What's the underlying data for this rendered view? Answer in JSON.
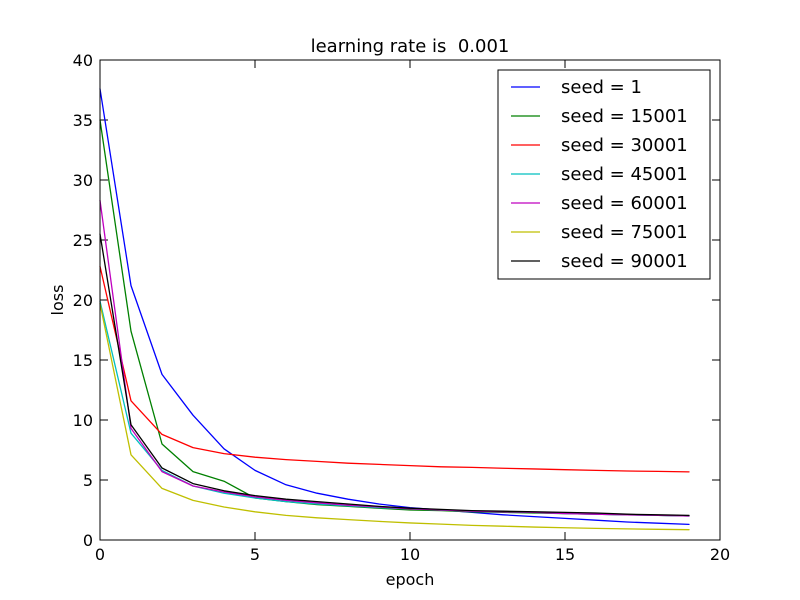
{
  "chart_data": {
    "type": "line",
    "title": "learning rate is  0.001",
    "xlabel": "epoch",
    "ylabel": "loss",
    "xlim": [
      0,
      20
    ],
    "ylim": [
      0,
      40
    ],
    "xticks": [
      0,
      5,
      10,
      15,
      20
    ],
    "yticks": [
      0,
      5,
      10,
      15,
      20,
      25,
      30,
      35,
      40
    ],
    "xtick_labels": [
      "0",
      "5",
      "10",
      "15",
      "20"
    ],
    "ytick_labels": [
      "0",
      "5",
      "10",
      "15",
      "20",
      "25",
      "30",
      "35",
      "40"
    ],
    "grid": false,
    "legend_position": "top-right",
    "x": [
      0,
      1,
      2,
      3,
      4,
      5,
      6,
      7,
      8,
      9,
      10,
      11,
      12,
      13,
      14,
      15,
      16,
      17,
      18,
      19
    ],
    "series": [
      {
        "name": "seed = 1",
        "legend_label": "seed = 1",
        "color": "#0000ff",
        "values": [
          37.6,
          21.2,
          13.8,
          10.4,
          7.6,
          5.8,
          4.6,
          3.9,
          3.4,
          3.0,
          2.7,
          2.5,
          2.3,
          2.1,
          1.95,
          1.8,
          1.65,
          1.5,
          1.4,
          1.3
        ]
      },
      {
        "name": "seed = 15001",
        "legend_label": "seed = 15001",
        "color": "#008000",
        "values": [
          35.0,
          17.4,
          8.0,
          5.7,
          4.9,
          3.5,
          3.2,
          2.95,
          2.8,
          2.65,
          2.5,
          2.45,
          2.35,
          2.3,
          2.25,
          2.2,
          2.15,
          2.1,
          2.05,
          2.0
        ]
      },
      {
        "name": "seed = 30001",
        "legend_label": "seed = 30001",
        "color": "#ff0000",
        "values": [
          22.8,
          11.6,
          8.8,
          7.7,
          7.2,
          6.9,
          6.7,
          6.55,
          6.4,
          6.3,
          6.2,
          6.1,
          6.05,
          5.98,
          5.92,
          5.86,
          5.8,
          5.75,
          5.72,
          5.68
        ]
      },
      {
        "name": "seed = 45001",
        "legend_label": "seed = 45001",
        "color": "#00bfbf",
        "values": [
          19.9,
          8.9,
          5.8,
          4.5,
          3.9,
          3.5,
          3.2,
          3.0,
          2.85,
          2.7,
          2.6,
          2.5,
          2.4,
          2.35,
          2.3,
          2.2,
          2.15,
          2.1,
          2.05,
          2.0
        ]
      },
      {
        "name": "seed = 60001",
        "legend_label": "seed = 60001",
        "color": "#bf00bf",
        "values": [
          28.3,
          9.3,
          5.7,
          4.5,
          4.0,
          3.6,
          3.3,
          3.1,
          2.9,
          2.75,
          2.6,
          2.5,
          2.4,
          2.35,
          2.3,
          2.2,
          2.15,
          2.1,
          2.05,
          2.0
        ]
      },
      {
        "name": "seed = 75001",
        "legend_label": "seed = 75001",
        "color": "#bfbf00",
        "values": [
          19.7,
          7.1,
          4.3,
          3.3,
          2.75,
          2.35,
          2.05,
          1.85,
          1.7,
          1.55,
          1.42,
          1.32,
          1.22,
          1.15,
          1.08,
          1.02,
          0.97,
          0.93,
          0.89,
          0.86
        ]
      },
      {
        "name": "seed = 90001",
        "legend_label": "seed = 90001",
        "color": "#000000",
        "values": [
          25.5,
          9.6,
          6.0,
          4.7,
          4.1,
          3.7,
          3.4,
          3.2,
          3.0,
          2.8,
          2.65,
          2.55,
          2.45,
          2.4,
          2.35,
          2.3,
          2.25,
          2.15,
          2.1,
          2.05
        ]
      }
    ]
  }
}
